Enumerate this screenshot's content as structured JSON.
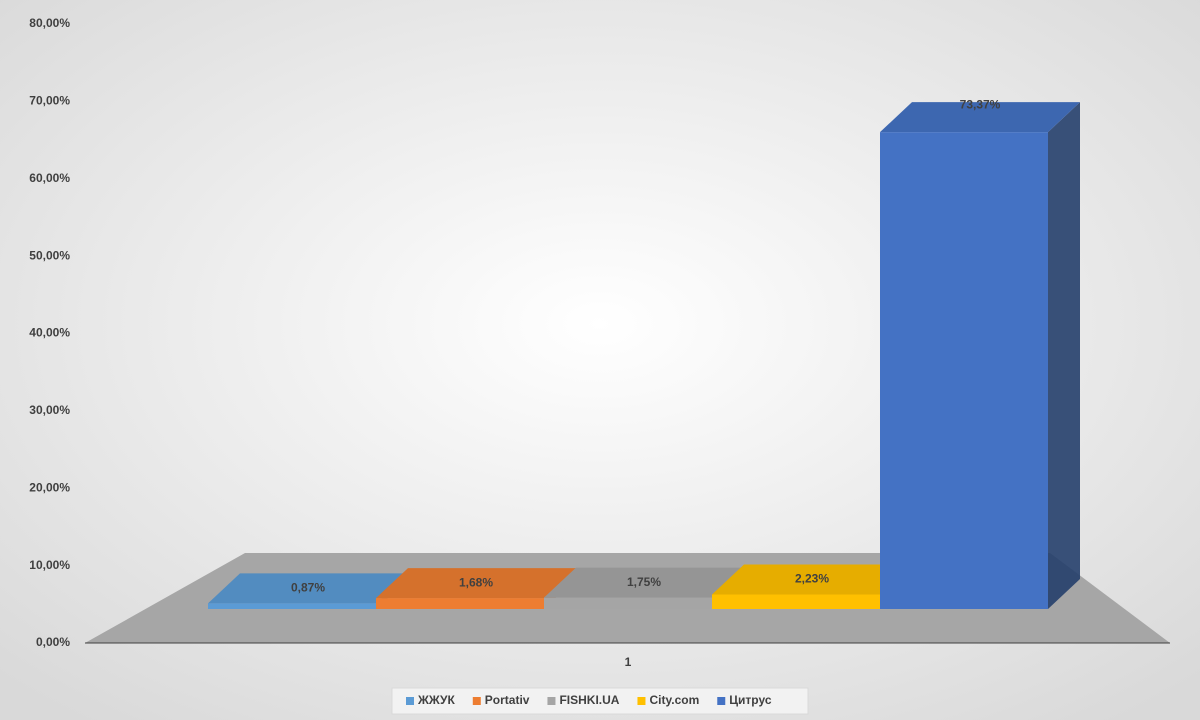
{
  "chart_data": {
    "type": "bar3d",
    "categories": [
      "1"
    ],
    "series": [
      {
        "name": "ЖЖУК",
        "color": "#5b9bd5",
        "values": [
          0.87
        ],
        "value_labels": [
          "0,87%"
        ]
      },
      {
        "name": "Portativ",
        "color": "#ed7d31",
        "values": [
          1.68
        ],
        "value_labels": [
          "1,68%"
        ]
      },
      {
        "name": "FISHKI.UA",
        "color": "#a5a5a5",
        "values": [
          1.75
        ],
        "value_labels": [
          "1,75%"
        ]
      },
      {
        "name": "City.com",
        "color": "#ffc000",
        "values": [
          2.23
        ],
        "value_labels": [
          "2,23%"
        ]
      },
      {
        "name": "Цитрус",
        "color": "#4472c4",
        "values": [
          73.37
        ],
        "value_labels": [
          "73,37%"
        ]
      }
    ],
    "ylim": [
      0,
      80
    ],
    "yticks": [
      {
        "value": 0,
        "label": "0,00%"
      },
      {
        "value": 10,
        "label": "10,00%"
      },
      {
        "value": 20,
        "label": "20,00%"
      },
      {
        "value": 30,
        "label": "30,00%"
      },
      {
        "value": 40,
        "label": "40,00%"
      },
      {
        "value": 50,
        "label": "50,00%"
      },
      {
        "value": 60,
        "label": "60,00%"
      },
      {
        "value": 70,
        "label": "70,00%"
      },
      {
        "value": 80,
        "label": "80,00%"
      }
    ],
    "legend": "bottom"
  }
}
